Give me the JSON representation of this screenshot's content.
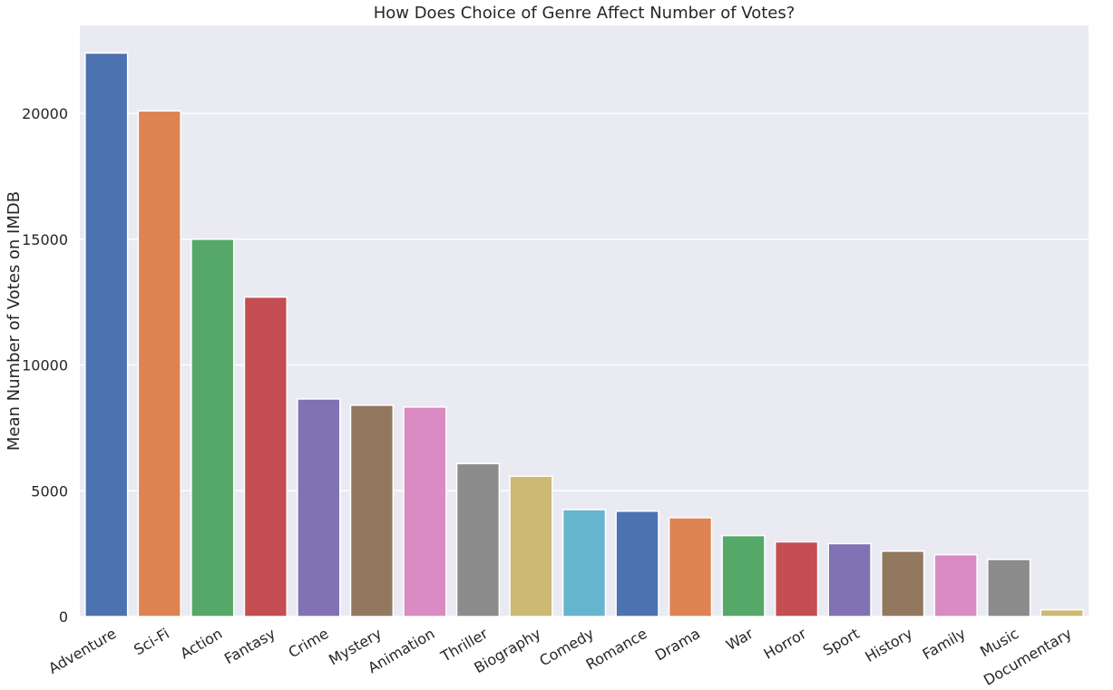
{
  "chart_data": {
    "type": "bar",
    "title": "How Does Choice of Genre Affect Number of Votes?",
    "xlabel": "",
    "ylabel": "Mean Number of Votes on IMDB",
    "categories": [
      "Adventure",
      "Sci-Fi",
      "Action",
      "Fantasy",
      "Crime",
      "Mystery",
      "Animation",
      "Thriller",
      "Biography",
      "Comedy",
      "Romance",
      "Drama",
      "War",
      "Horror",
      "Sport",
      "History",
      "Family",
      "Music",
      "Documentary"
    ],
    "values": [
      22400,
      20100,
      15000,
      12700,
      8650,
      8400,
      8330,
      6080,
      5580,
      4250,
      4190,
      3930,
      3220,
      2970,
      2900,
      2600,
      2460,
      2270,
      270
    ],
    "ylim": [
      0,
      23500
    ],
    "yticks": [
      0,
      5000,
      10000,
      15000,
      20000
    ],
    "ytick_labels": [
      "0",
      "5000",
      "10000",
      "15000",
      "20000"
    ],
    "grid": "y",
    "background": "#EAEAF2",
    "colors": [
      "#4C72B0",
      "#DD8452",
      "#55A868",
      "#C44E52",
      "#8172B3",
      "#937860",
      "#DA8BC3",
      "#8C8C8C",
      "#CCB974",
      "#64B5CD"
    ]
  }
}
